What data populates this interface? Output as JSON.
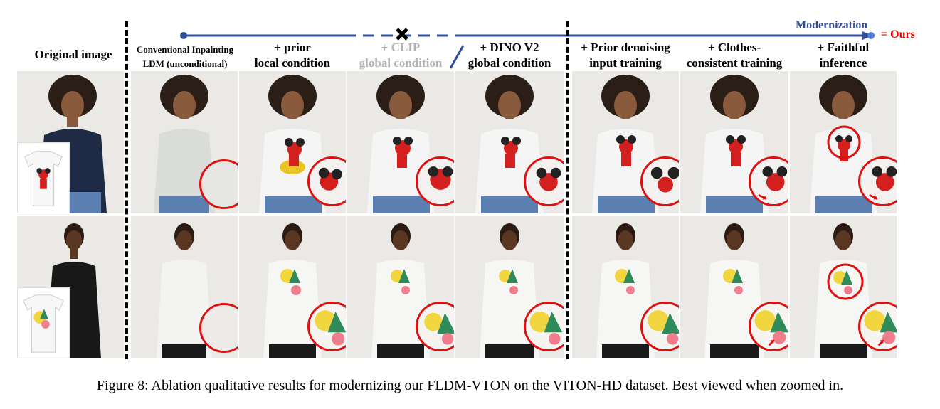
{
  "figure": {
    "original_title": "Original image",
    "timeline_label": "Modernization",
    "ours_label": "= Ours",
    "columns": [
      {
        "line1": "Conventional Inpainting",
        "line2": "LDM (unconditional)",
        "style": "small"
      },
      {
        "line1": "+ prior",
        "line2": "local condition",
        "style": "normal"
      },
      {
        "line1": "+ CLIP",
        "line2": "global condition",
        "style": "gray"
      },
      {
        "line1": "+ DINO V2",
        "line2": "global condition",
        "style": "normal"
      },
      {
        "line1": "+ Prior denoising",
        "line2": "input training",
        "style": "normal"
      },
      {
        "line1": "+ Clothes-",
        "line2": "consistent training",
        "style": "normal"
      },
      {
        "line1": "+  Faithful",
        "line2": "inference",
        "style": "normal"
      }
    ],
    "caption": "Figure 8: Ablation qualitative results for modernizing our FLDM-VTON on the VITON-HD dataset. Best viewed when zoomed in."
  },
  "colors": {
    "timeline_blue": "#2e4d9a",
    "highlight_red": "#e01010",
    "ours_red": "#e30000",
    "removed_gray": "#b3b3b3"
  },
  "icons": {
    "removed_marker": "cross-icon",
    "timeline_start": "dot-icon",
    "timeline_end": "arrow-dot-icon"
  }
}
